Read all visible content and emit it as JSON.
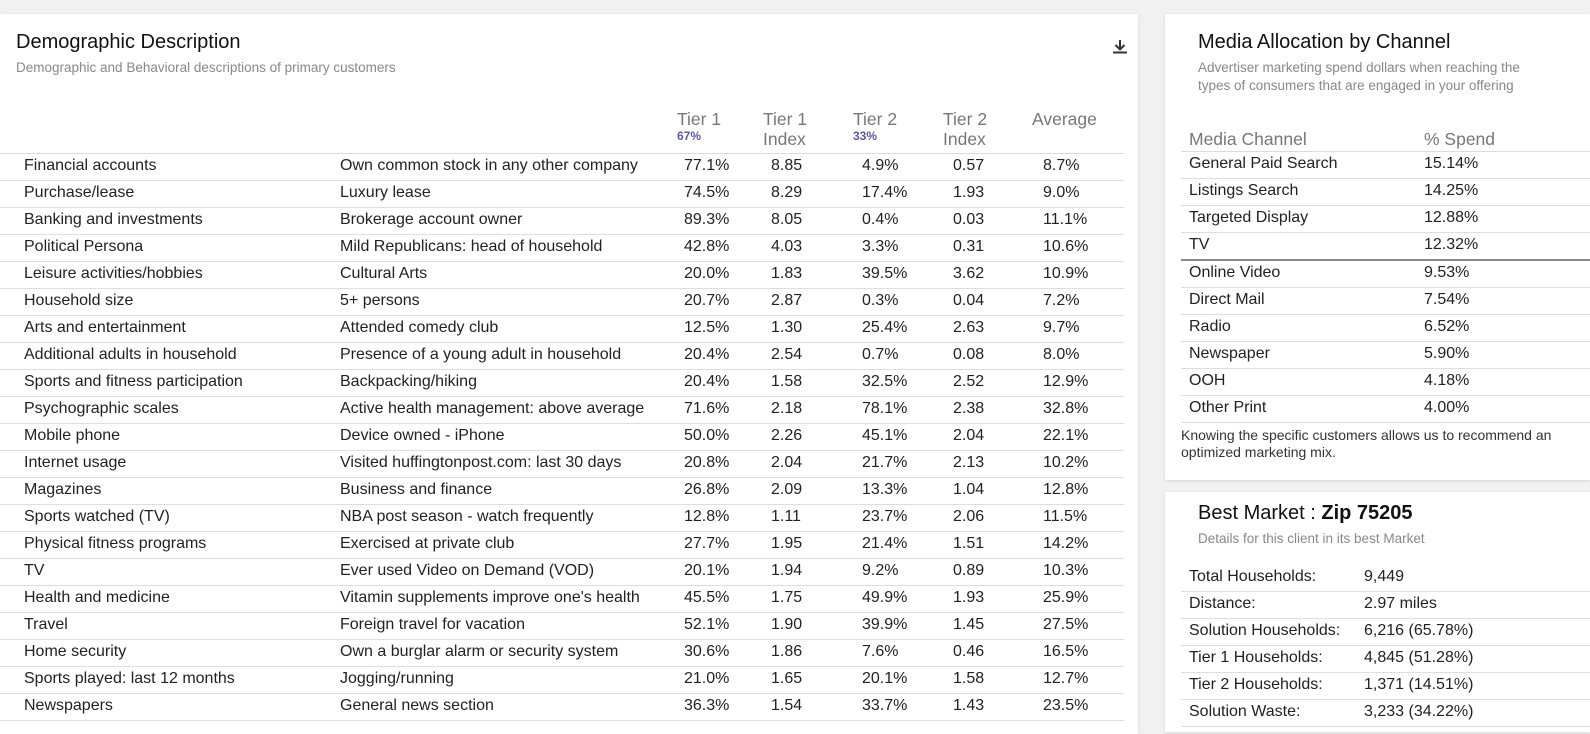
{
  "demographic": {
    "title": "Demographic Description",
    "subtitle": "Demographic and Behavioral descriptions of primary customers",
    "download_icon": "download-icon",
    "columns": {
      "tier1": "Tier 1",
      "tier1_pct": "67%",
      "tier1_index_a": "Tier 1",
      "tier1_index_b": "Index",
      "tier2": "Tier 2",
      "tier2_pct": "33%",
      "tier2_index_a": "Tier 2",
      "tier2_index_b": "Index",
      "average": "Average"
    },
    "rows": [
      {
        "category": "Financial accounts",
        "description": "Own common stock in any other company",
        "tier1": "77.1%",
        "tier1_index": "8.85",
        "tier2": "4.9%",
        "tier2_index": "0.57",
        "average": "8.7%"
      },
      {
        "category": "Purchase/lease",
        "description": "Luxury lease",
        "tier1": "74.5%",
        "tier1_index": "8.29",
        "tier2": "17.4%",
        "tier2_index": "1.93",
        "average": "9.0%"
      },
      {
        "category": "Banking and investments",
        "description": "Brokerage account owner",
        "tier1": "89.3%",
        "tier1_index": "8.05",
        "tier2": "0.4%",
        "tier2_index": "0.03",
        "average": "11.1%"
      },
      {
        "category": "Political Persona",
        "description": "Mild Republicans: head of household",
        "tier1": "42.8%",
        "tier1_index": "4.03",
        "tier2": "3.3%",
        "tier2_index": "0.31",
        "average": "10.6%"
      },
      {
        "category": "Leisure activities/hobbies",
        "description": "Cultural Arts",
        "tier1": "20.0%",
        "tier1_index": "1.83",
        "tier2": "39.5%",
        "tier2_index": "3.62",
        "average": "10.9%"
      },
      {
        "category": "Household size",
        "description": "5+ persons",
        "tier1": "20.7%",
        "tier1_index": "2.87",
        "tier2": "0.3%",
        "tier2_index": "0.04",
        "average": "7.2%"
      },
      {
        "category": "Arts and entertainment",
        "description": "Attended comedy club",
        "tier1": "12.5%",
        "tier1_index": "1.30",
        "tier2": "25.4%",
        "tier2_index": "2.63",
        "average": "9.7%"
      },
      {
        "category": "Additional adults in household",
        "description": "Presence of a young adult in household",
        "tier1": "20.4%",
        "tier1_index": "2.54",
        "tier2": "0.7%",
        "tier2_index": "0.08",
        "average": "8.0%"
      },
      {
        "category": "Sports and fitness participation",
        "description": "Backpacking/hiking",
        "tier1": "20.4%",
        "tier1_index": "1.58",
        "tier2": "32.5%",
        "tier2_index": "2.52",
        "average": "12.9%"
      },
      {
        "category": "Psychographic scales",
        "description": "Active health management: above average",
        "tier1": "71.6%",
        "tier1_index": "2.18",
        "tier2": "78.1%",
        "tier2_index": "2.38",
        "average": "32.8%"
      },
      {
        "category": "Mobile phone",
        "description": "Device owned - iPhone",
        "tier1": "50.0%",
        "tier1_index": "2.26",
        "tier2": "45.1%",
        "tier2_index": "2.04",
        "average": "22.1%"
      },
      {
        "category": "Internet usage",
        "description": "Visited huffingtonpost.com: last 30 days",
        "tier1": "20.8%",
        "tier1_index": "2.04",
        "tier2": "21.7%",
        "tier2_index": "2.13",
        "average": "10.2%"
      },
      {
        "category": "Magazines",
        "description": "Business and finance",
        "tier1": "26.8%",
        "tier1_index": "2.09",
        "tier2": "13.3%",
        "tier2_index": "1.04",
        "average": "12.8%"
      },
      {
        "category": "Sports watched (TV)",
        "description": "NBA post season - watch frequently",
        "tier1": "12.8%",
        "tier1_index": "1.11",
        "tier2": "23.7%",
        "tier2_index": "2.06",
        "average": "11.5%"
      },
      {
        "category": "Physical fitness programs",
        "description": "Exercised at private club",
        "tier1": "27.7%",
        "tier1_index": "1.95",
        "tier2": "21.4%",
        "tier2_index": "1.51",
        "average": "14.2%"
      },
      {
        "category": "TV",
        "description": "Ever used Video on Demand (VOD)",
        "tier1": "20.1%",
        "tier1_index": "1.94",
        "tier2": "9.2%",
        "tier2_index": "0.89",
        "average": "10.3%"
      },
      {
        "category": "Health and medicine",
        "description": "Vitamin supplements improve one's health",
        "tier1": "45.5%",
        "tier1_index": "1.75",
        "tier2": "49.9%",
        "tier2_index": "1.93",
        "average": "25.9%"
      },
      {
        "category": "Travel",
        "description": "Foreign travel for vacation",
        "tier1": "52.1%",
        "tier1_index": "1.90",
        "tier2": "39.9%",
        "tier2_index": "1.45",
        "average": "27.5%"
      },
      {
        "category": "Home security",
        "description": "Own a burglar alarm or security system",
        "tier1": "30.6%",
        "tier1_index": "1.86",
        "tier2": "7.6%",
        "tier2_index": "0.46",
        "average": "16.5%"
      },
      {
        "category": "Sports played: last 12 months",
        "description": "Jogging/running",
        "tier1": "21.0%",
        "tier1_index": "1.65",
        "tier2": "20.1%",
        "tier2_index": "1.58",
        "average": "12.7%"
      },
      {
        "category": "Newspapers",
        "description": "General news section",
        "tier1": "36.3%",
        "tier1_index": "1.54",
        "tier2": "33.7%",
        "tier2_index": "1.43",
        "average": "23.5%"
      }
    ]
  },
  "media": {
    "title": "Media Allocation by Channel",
    "subtitle_line1": "Advertiser marketing spend dollars when reaching the",
    "subtitle_line2": "types of consumers that are engaged in your offering",
    "col_channel": "Media Channel",
    "col_spend": "% Spend",
    "rows": [
      {
        "channel": "General Paid Search",
        "spend": "15.14%"
      },
      {
        "channel": "Listings Search",
        "spend": "14.25%"
      },
      {
        "channel": "Targeted Display",
        "spend": "12.88%"
      },
      {
        "channel": "TV",
        "spend": "12.32%"
      },
      {
        "channel": "Online Video",
        "spend": "9.53%"
      },
      {
        "channel": "Direct Mail",
        "spend": "7.54%"
      },
      {
        "channel": "Radio",
        "spend": "6.52%"
      },
      {
        "channel": "Newspaper",
        "spend": "5.90%"
      },
      {
        "channel": "OOH",
        "spend": "4.18%"
      },
      {
        "channel": "Other Print",
        "spend": "4.00%"
      }
    ],
    "note_line1": "Knowing the specific customers allows us to recommend an",
    "note_line2": "optimized marketing mix."
  },
  "market": {
    "title_prefix": "Best Market : ",
    "title_zip": "Zip 75205",
    "subtitle": "Details for this client in its best Market",
    "rows": [
      {
        "label": "Total Households:",
        "value": "9,449"
      },
      {
        "label": "Distance:",
        "value": "2.97 miles"
      },
      {
        "label": "Solution Households:",
        "value": "6,216 (65.78%)"
      },
      {
        "label": "Tier 1 Households:",
        "value": "4,845 (51.28%)"
      },
      {
        "label": "Tier 2 Households:",
        "value": "1,371 (14.51%)"
      },
      {
        "label": "Solution Waste:",
        "value": "3,233 (34.22%)"
      }
    ]
  }
}
